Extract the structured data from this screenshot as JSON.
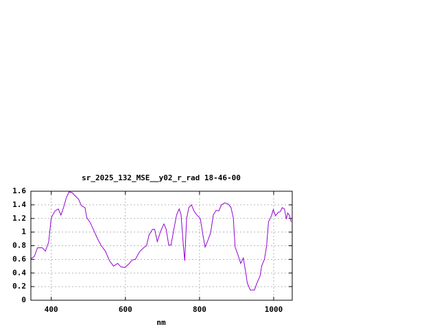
{
  "chart_data": {
    "type": "line",
    "title": "sr_2025_132_MSE__y02_r_rad 18-46-00",
    "x_label": "nm",
    "x": [
      345,
      354,
      363,
      376,
      384,
      393,
      400,
      410,
      419,
      426,
      433,
      441,
      448,
      456,
      465,
      474,
      481,
      491,
      496,
      505,
      515,
      526,
      535,
      546,
      557,
      568,
      579,
      588,
      598,
      609,
      618,
      627,
      638,
      649,
      657,
      664,
      673,
      679,
      686,
      695,
      704,
      710,
      717,
      723,
      730,
      738,
      745,
      750,
      756,
      760,
      765,
      771,
      778,
      786,
      793,
      802,
      809,
      815,
      822,
      830,
      837,
      845,
      852,
      859,
      868,
      878,
      885,
      891,
      896,
      904,
      911,
      918,
      924,
      929,
      937,
      948,
      957,
      963,
      968,
      975,
      981,
      986,
      994,
      999,
      1005,
      1012,
      1018,
      1023,
      1029,
      1034,
      1038,
      1043,
      1047
    ],
    "series": [
      {
        "color": "#9400d3",
        "values": [
          0.61,
          0.64,
          0.77,
          0.77,
          0.72,
          0.85,
          1.21,
          1.31,
          1.34,
          1.25,
          1.36,
          1.51,
          1.59,
          1.58,
          1.53,
          1.48,
          1.39,
          1.36,
          1.21,
          1.14,
          1.02,
          0.89,
          0.8,
          0.72,
          0.58,
          0.5,
          0.54,
          0.49,
          0.48,
          0.53,
          0.59,
          0.6,
          0.71,
          0.77,
          0.8,
          0.96,
          1.04,
          1.04,
          0.86,
          1.01,
          1.12,
          1.04,
          0.81,
          0.81,
          1.02,
          1.25,
          1.34,
          1.26,
          0.83,
          0.58,
          1.19,
          1.36,
          1.4,
          1.3,
          1.25,
          1.2,
          0.96,
          0.78,
          0.87,
          0.99,
          1.25,
          1.32,
          1.31,
          1.4,
          1.43,
          1.41,
          1.36,
          1.21,
          0.78,
          0.66,
          0.54,
          0.62,
          0.43,
          0.25,
          0.15,
          0.15,
          0.28,
          0.35,
          0.51,
          0.6,
          0.8,
          1.15,
          1.24,
          1.33,
          1.24,
          1.29,
          1.3,
          1.36,
          1.34,
          1.19,
          1.28,
          1.24,
          1.15
        ]
      }
    ],
    "xlim": [
      345,
      1050
    ],
    "ylim": [
      0,
      1.6
    ],
    "xticks": [
      400,
      600,
      800,
      1000
    ],
    "yticks": [
      0,
      0.2,
      0.4,
      0.6,
      0.8,
      1,
      1.2,
      1.4,
      1.6
    ],
    "grid": true
  }
}
